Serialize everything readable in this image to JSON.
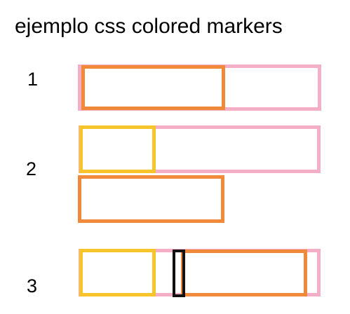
{
  "title": "ejemplo css colored markers",
  "rows": [
    {
      "label": "1",
      "markers": [
        "pink",
        "orange"
      ]
    },
    {
      "label": "2",
      "markers": [
        "pink",
        "yellow",
        "orange"
      ]
    },
    {
      "label": "3",
      "markers": [
        "pink",
        "yellow",
        "orange",
        "black"
      ]
    }
  ],
  "colors": {
    "pink": "#f4aec6",
    "orange": "#f08a3a",
    "yellow": "#f7c52a",
    "black": "#111111"
  }
}
